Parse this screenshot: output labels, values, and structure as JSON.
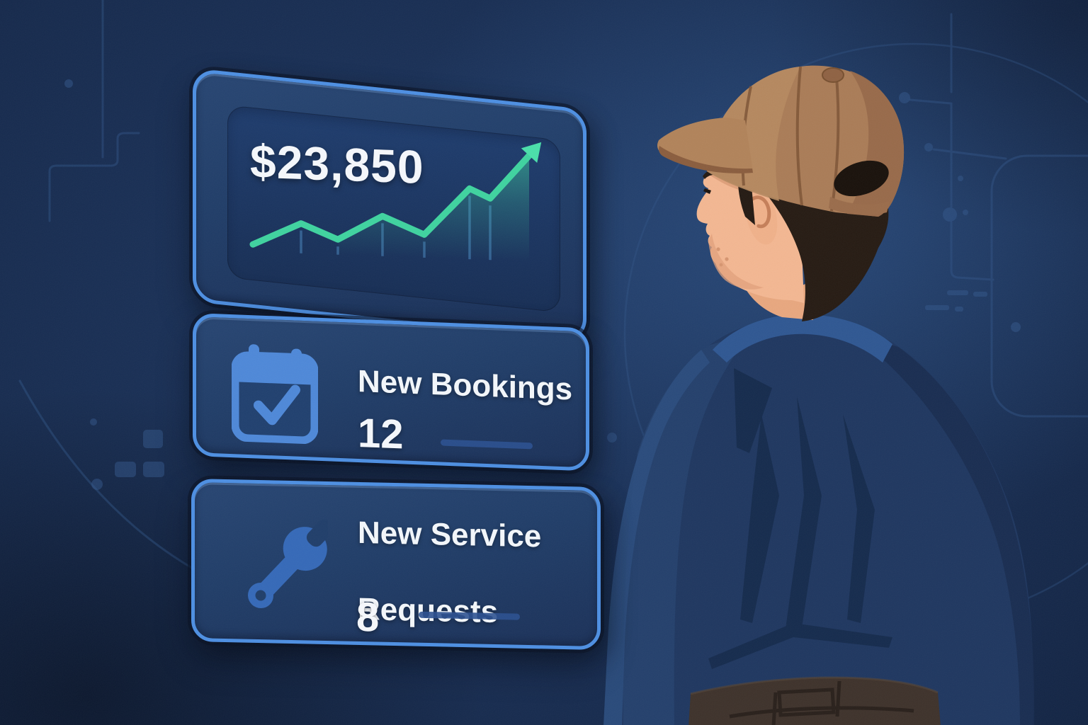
{
  "illustration": {
    "description": "Technician in a brown cap, seen from behind, looking at floating dashboard stat cards",
    "figure": "technician-back-view"
  },
  "cards": {
    "revenue": {
      "value": "$23,850",
      "icon": "trend-up-arrow-icon"
    },
    "bookings": {
      "label": "New Bookings",
      "value": "12",
      "icon": "calendar-check-icon"
    },
    "service": {
      "label": "New Service Requests",
      "label_lines": [
        "New Service",
        "Requests"
      ],
      "value": "8",
      "icon": "wrench-icon"
    }
  },
  "chart_data": {
    "type": "line",
    "title": "$23,850",
    "x_rel": [
      0.015,
      0.185,
      0.315,
      0.4725,
      0.62,
      0.78,
      0.8525,
      0.99
    ],
    "values": [
      12,
      32,
      19,
      41,
      26,
      68,
      60,
      99
    ],
    "ylim": [
      0,
      100
    ],
    "xlabel": "",
    "ylabel": "",
    "grid": "vertical-gridlines",
    "legend": "none",
    "line_color": "#3fd39f",
    "arrow_color": "#4adfaa",
    "area_color": "#3fd6a0",
    "annotations": [
      "upward trend arrow at end of line"
    ]
  },
  "colors": {
    "background_navy": "#16294c",
    "background_glow": "#2b4f82",
    "card_border_blue": "#4d8fe2",
    "card_fill": "#203d68",
    "inner_panel": "#1a3260",
    "accent_green": "#3fd39f",
    "icon_blue": "#4e88d8",
    "wrench_blue": "#3569b8",
    "text_white": "#f5f8fc",
    "dash_blue": "#2b5090",
    "cap_brown": "#aa7c57",
    "jacket_navy": "#1f3760",
    "skin": "#f3b792"
  }
}
